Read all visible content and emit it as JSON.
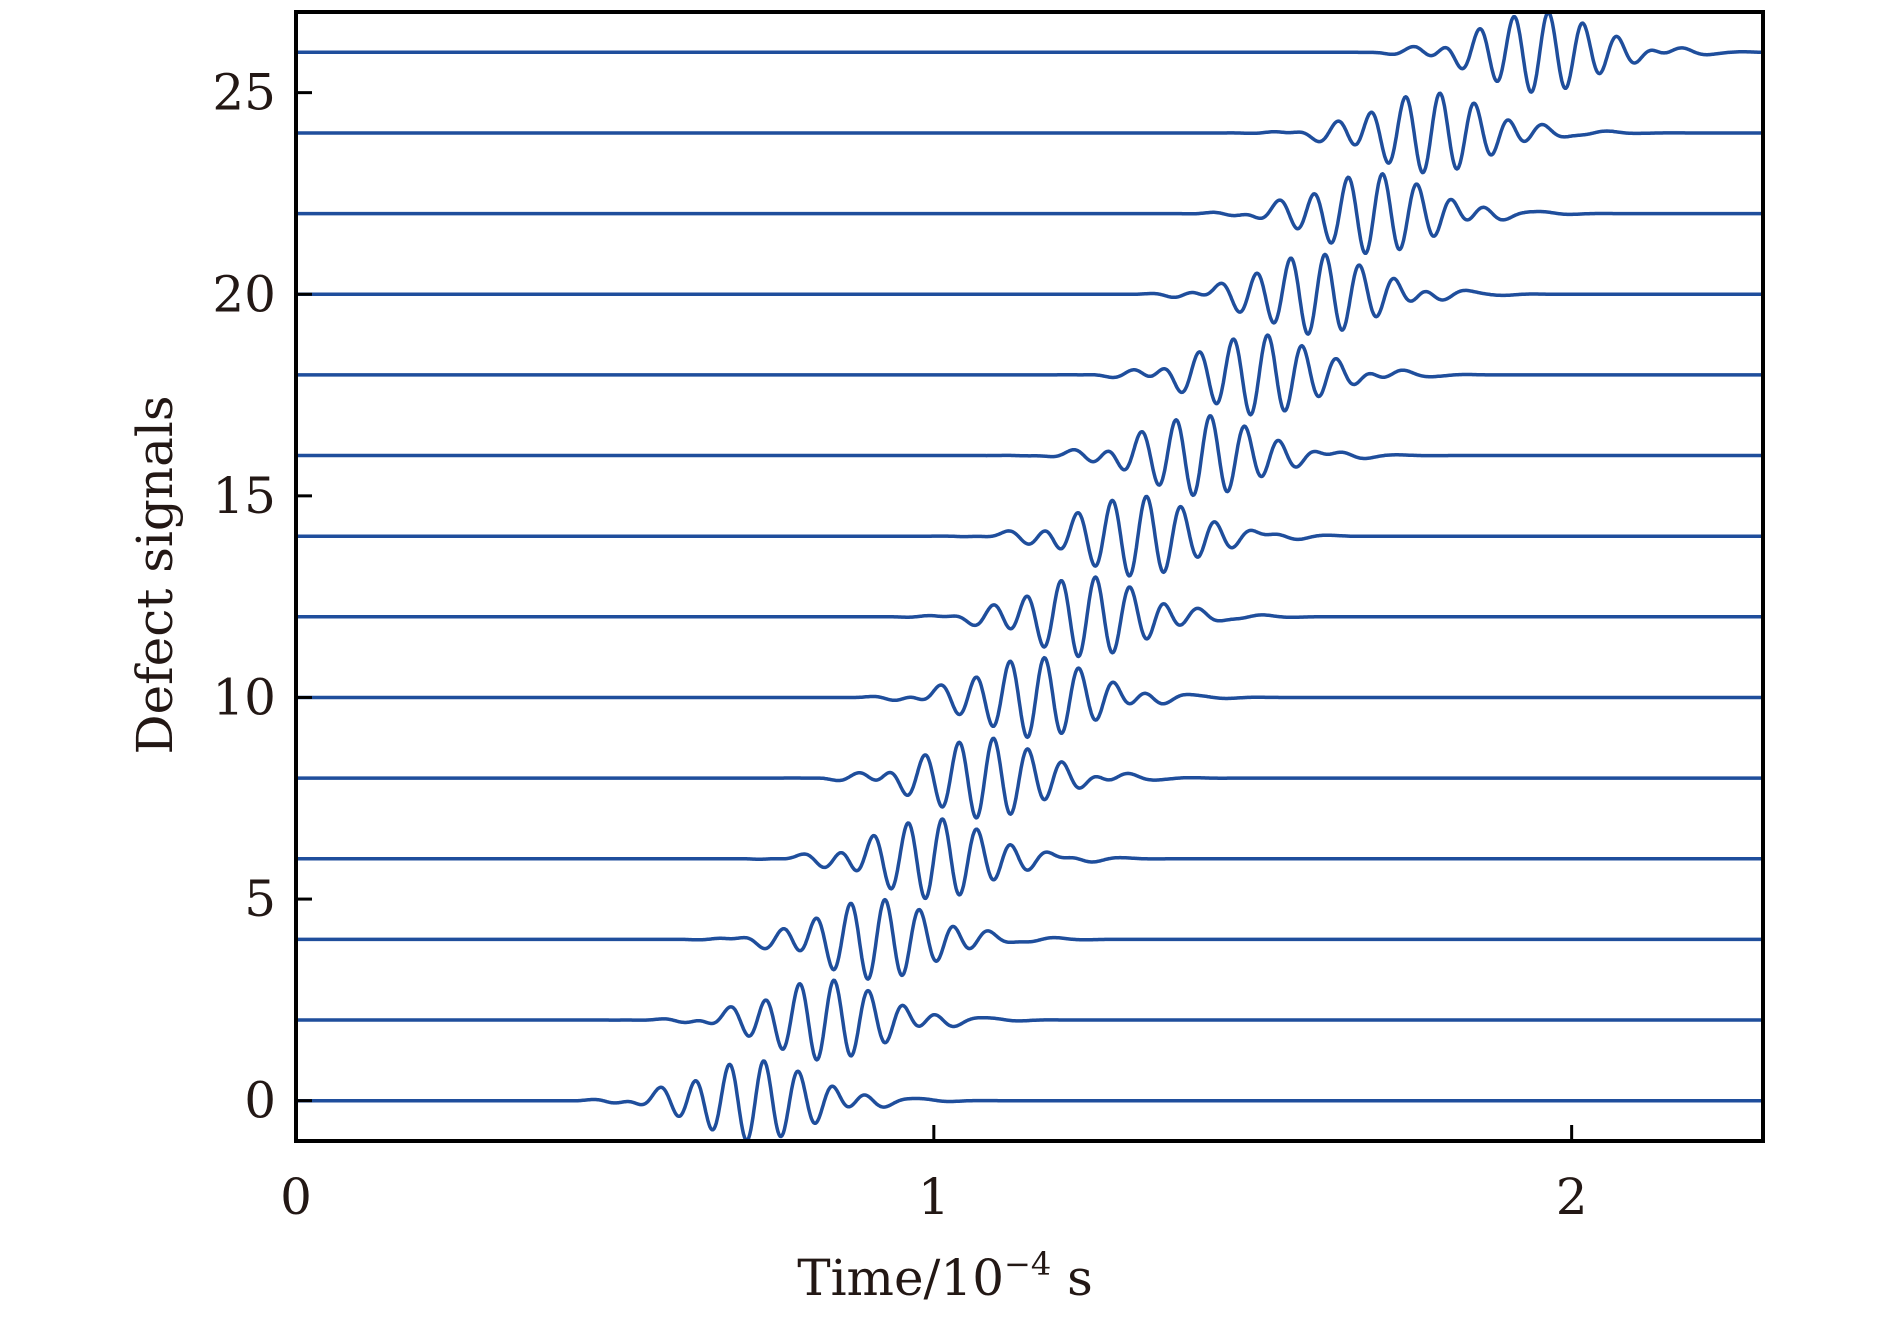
{
  "chart_data": {
    "type": "line",
    "title": "",
    "xlabel": {
      "text": "Time/10",
      "exponent": "−4",
      "unit": " s"
    },
    "ylabel": "Defect signals",
    "xlim": [
      0,
      2.3
    ],
    "ylim": [
      -1,
      27
    ],
    "xticks": [
      0,
      1,
      2
    ],
    "xtick_labels": [
      "0",
      "1",
      "2"
    ],
    "yticks": [
      0,
      5,
      10,
      15,
      20,
      25
    ],
    "ytick_labels": [
      "0",
      "5",
      "10",
      "15",
      "20",
      "25"
    ],
    "grid": false,
    "legend": "none",
    "trace_color": "#1f4e9c",
    "trace_amplitude": 1.0,
    "wave_frequency_per_unit": 18.5,
    "series": [
      {
        "offset": 0,
        "center_time": 0.72,
        "x_start": 0,
        "x_end": 2.3
      },
      {
        "offset": 2,
        "center_time": 0.83,
        "x_start": 0,
        "x_end": 2.3
      },
      {
        "offset": 4,
        "center_time": 0.91,
        "x_start": 0,
        "x_end": 2.3
      },
      {
        "offset": 6,
        "center_time": 1.0,
        "x_start": 0,
        "x_end": 2.3
      },
      {
        "offset": 8,
        "center_time": 1.08,
        "x_start": 0,
        "x_end": 2.3
      },
      {
        "offset": 10,
        "center_time": 1.16,
        "x_start": 0,
        "x_end": 2.3
      },
      {
        "offset": 12,
        "center_time": 1.24,
        "x_start": 0,
        "x_end": 2.3
      },
      {
        "offset": 14,
        "center_time": 1.32,
        "x_start": 0,
        "x_end": 2.3
      },
      {
        "offset": 16,
        "center_time": 1.42,
        "x_start": 0,
        "x_end": 2.3
      },
      {
        "offset": 18,
        "center_time": 1.51,
        "x_start": 0,
        "x_end": 2.3
      },
      {
        "offset": 20,
        "center_time": 1.6,
        "x_start": 0,
        "x_end": 2.3
      },
      {
        "offset": 22,
        "center_time": 1.69,
        "x_start": 0,
        "x_end": 2.3
      },
      {
        "offset": 24,
        "center_time": 1.78,
        "x_start": 0,
        "x_end": 2.3
      },
      {
        "offset": 26,
        "center_time": 1.95,
        "x_start": 0,
        "x_end": 2.3
      }
    ]
  }
}
